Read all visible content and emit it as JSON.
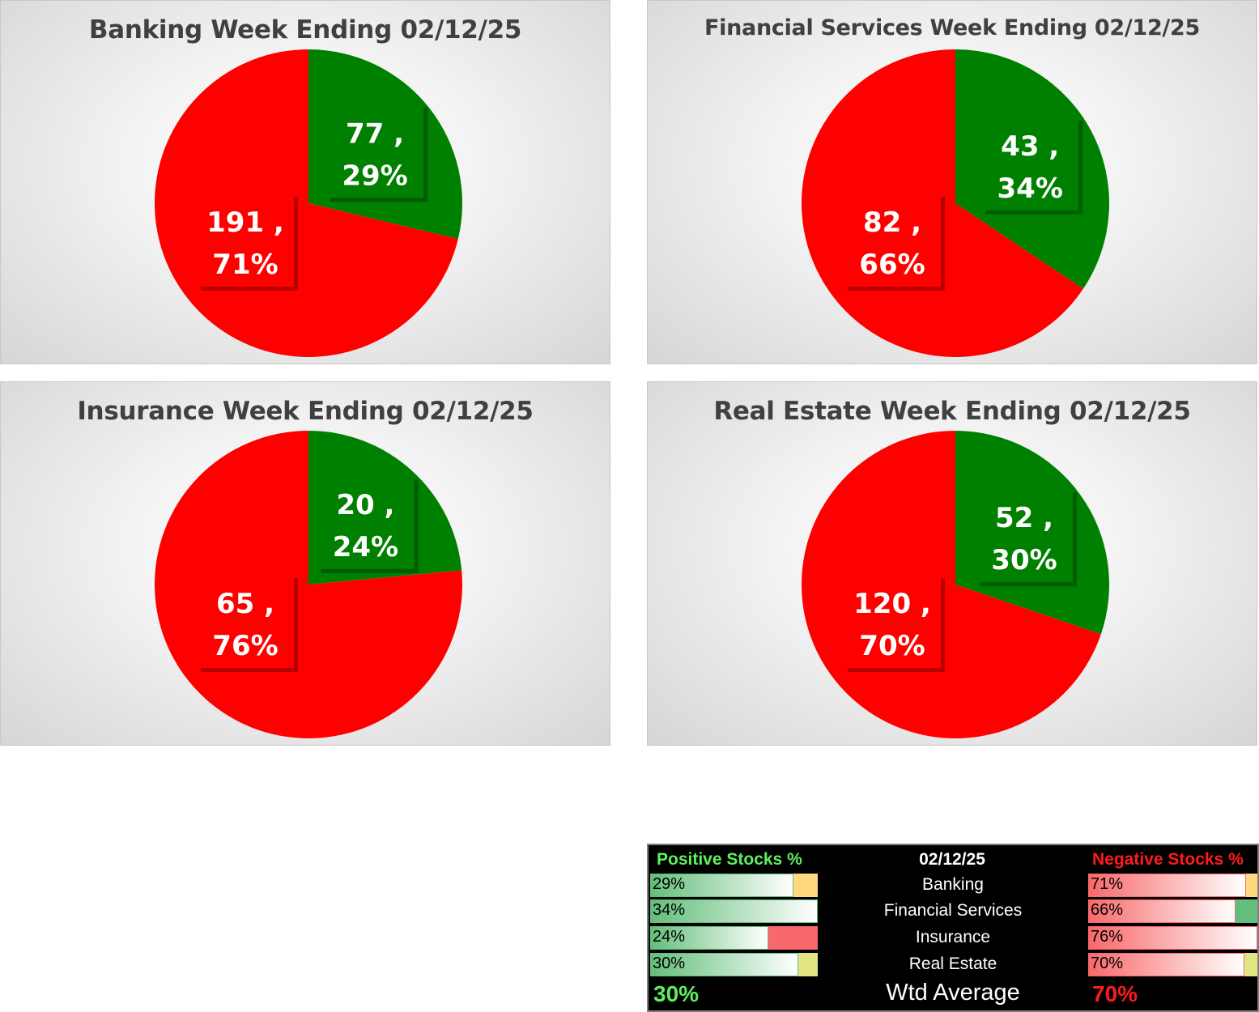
{
  "colors": {
    "positive": "#008000",
    "negative": "#ff0000"
  },
  "chart_data": [
    {
      "type": "pie",
      "title": "Banking Week Ending 02/12/25",
      "slices": [
        {
          "name": "Positive",
          "value": 77,
          "percent": "29%",
          "color": "#008000"
        },
        {
          "name": "Negative",
          "value": 191,
          "percent": "71%",
          "color": "#ff0000"
        }
      ]
    },
    {
      "type": "pie",
      "title": "Financial Services Week Ending 02/12/25",
      "slices": [
        {
          "name": "Positive",
          "value": 43,
          "percent": "34%",
          "color": "#008000"
        },
        {
          "name": "Negative",
          "value": 82,
          "percent": "66%",
          "color": "#ff0000"
        }
      ]
    },
    {
      "type": "pie",
      "title": "Insurance Week Ending 02/12/25",
      "slices": [
        {
          "name": "Positive",
          "value": 20,
          "percent": "24%",
          "color": "#008000"
        },
        {
          "name": "Negative",
          "value": 65,
          "percent": "76%",
          "color": "#ff0000"
        }
      ]
    },
    {
      "type": "pie",
      "title": "Real Estate Week Ending 02/12/25",
      "slices": [
        {
          "name": "Positive",
          "value": 52,
          "percent": "30%",
          "color": "#008000"
        },
        {
          "name": "Negative",
          "value": 120,
          "percent": "70%",
          "color": "#ff0000"
        }
      ]
    }
  ],
  "summary": {
    "positive_header": "Positive Stocks %",
    "date": "02/12/25",
    "negative_header": "Negative Stocks %",
    "rows": [
      {
        "label": "Banking",
        "positive": "29%",
        "positive_value": 0.29,
        "negative": "71%",
        "negative_value": 0.71,
        "pos_indicator": "#ffd97f",
        "neg_indicator": "#ffd97f"
      },
      {
        "label": "Financial Services",
        "positive": "34%",
        "positive_value": 0.34,
        "negative": "66%",
        "negative_value": 0.66,
        "pos_indicator": "#ffffff",
        "neg_indicator": "#63be7b"
      },
      {
        "label": "Insurance",
        "positive": "24%",
        "positive_value": 0.24,
        "negative": "76%",
        "negative_value": 0.76,
        "pos_indicator": "#f8696b",
        "neg_indicator": "#ffffff"
      },
      {
        "label": "Real Estate",
        "positive": "30%",
        "positive_value": 0.3,
        "negative": "70%",
        "negative_value": 0.7,
        "pos_indicator": "#e3e582",
        "neg_indicator": "#e3e582"
      }
    ],
    "avg_positive": "30%",
    "avg_label": "Wtd Average",
    "avg_negative": "70%"
  }
}
